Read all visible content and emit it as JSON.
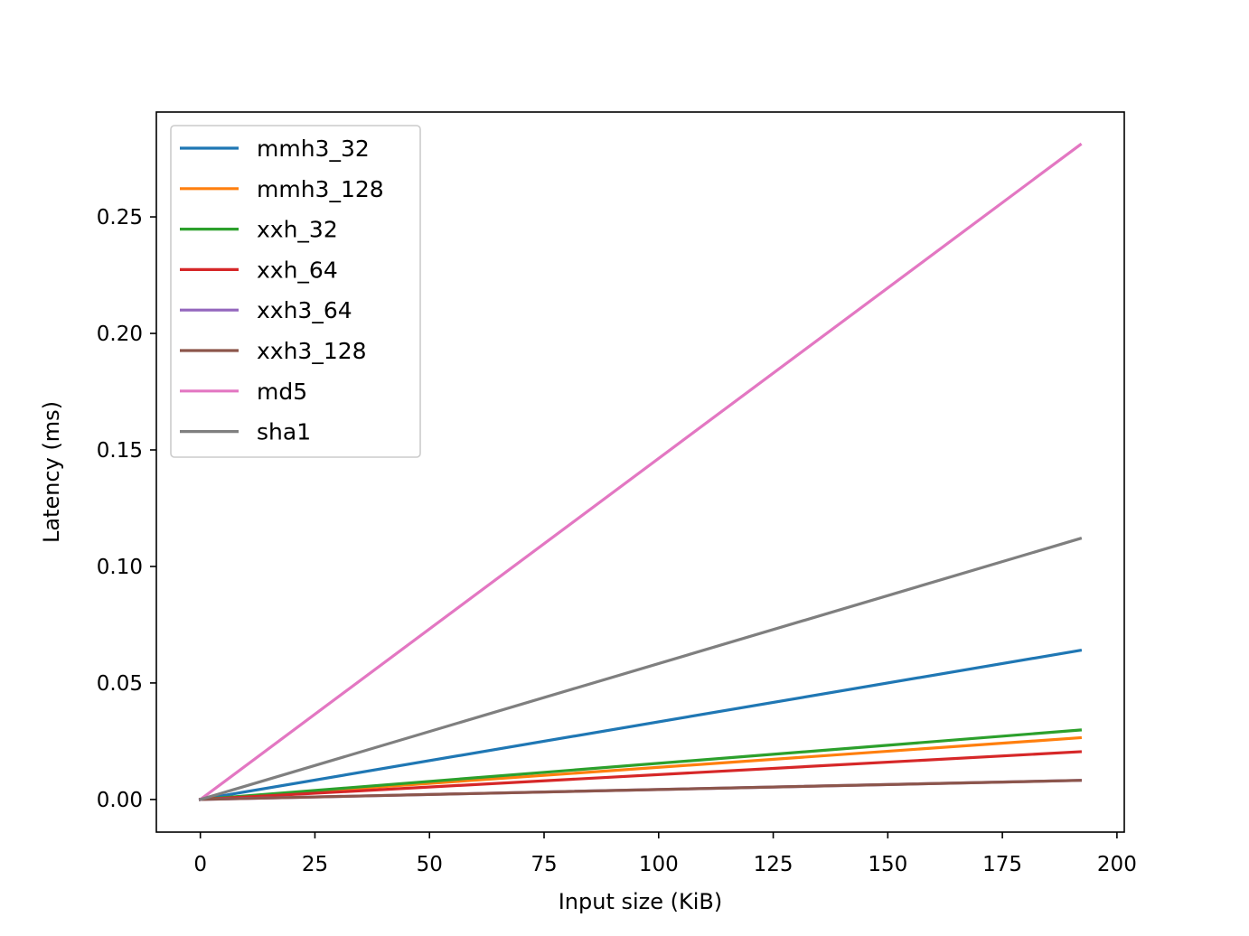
{
  "chart_data": {
    "type": "line",
    "xlabel": "Input size (KiB)",
    "ylabel": "Latency (ms)",
    "xlim": [
      -9.6,
      201.6
    ],
    "ylim": [
      -0.014,
      0.295
    ],
    "xticks": [
      0,
      25,
      50,
      75,
      100,
      125,
      150,
      175,
      200
    ],
    "xtick_labels": [
      "0",
      "25",
      "50",
      "75",
      "100",
      "125",
      "150",
      "175",
      "200"
    ],
    "yticks": [
      0.0,
      0.05,
      0.1,
      0.15,
      0.2,
      0.25
    ],
    "ytick_labels": [
      "0.00",
      "0.05",
      "0.10",
      "0.15",
      "0.20",
      "0.25"
    ],
    "grid": false,
    "legend_position": "top-left",
    "series": [
      {
        "name": "mmh3_32",
        "color": "#1f77b4",
        "x": [
          0,
          192
        ],
        "y": [
          0.0,
          0.064
        ]
      },
      {
        "name": "mmh3_128",
        "color": "#ff7f0e",
        "x": [
          0,
          192
        ],
        "y": [
          0.0,
          0.0265
        ]
      },
      {
        "name": "xxh_32",
        "color": "#2ca02c",
        "x": [
          0,
          192
        ],
        "y": [
          0.0,
          0.0298
        ]
      },
      {
        "name": "xxh_64",
        "color": "#d62728",
        "x": [
          0,
          192
        ],
        "y": [
          0.0,
          0.0205
        ]
      },
      {
        "name": "xxh3_64",
        "color": "#9467bd",
        "x": [
          0,
          192
        ],
        "y": [
          0.0,
          0.0082
        ]
      },
      {
        "name": "xxh3_128",
        "color": "#8c564b",
        "x": [
          0,
          192
        ],
        "y": [
          0.0,
          0.0082
        ]
      },
      {
        "name": "md5",
        "color": "#e377c2",
        "x": [
          0,
          192
        ],
        "y": [
          0.0,
          0.281
        ]
      },
      {
        "name": "sha1",
        "color": "#7f7f7f",
        "x": [
          0,
          192
        ],
        "y": [
          0.0,
          0.112
        ]
      }
    ]
  }
}
